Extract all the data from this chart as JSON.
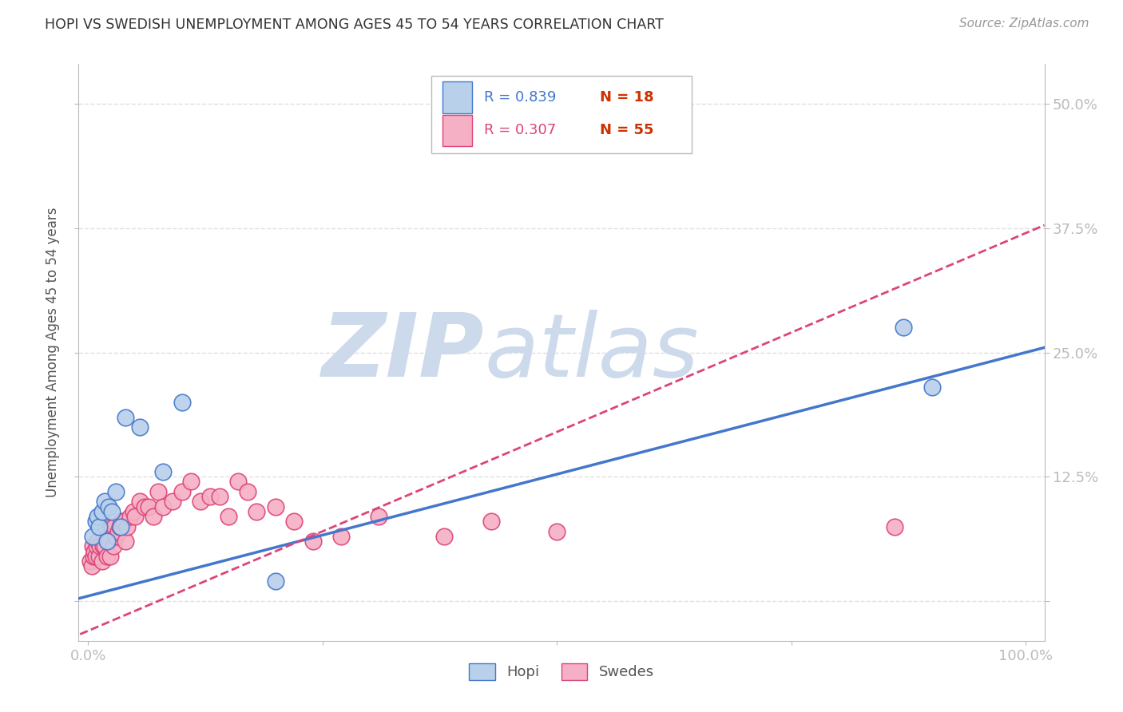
{
  "title": "HOPI VS SWEDISH UNEMPLOYMENT AMONG AGES 45 TO 54 YEARS CORRELATION CHART",
  "source": "Source: ZipAtlas.com",
  "ylabel_label": "Unemployment Among Ages 45 to 54 years",
  "ytick_values": [
    0,
    0.125,
    0.25,
    0.375,
    0.5
  ],
  "xtick_values": [
    0,
    0.25,
    0.5,
    0.75,
    1.0
  ],
  "xtick_labels": [
    "0.0%",
    "",
    "",
    "",
    "100.0%"
  ],
  "xlim": [
    -0.01,
    1.02
  ],
  "ylim": [
    -0.04,
    0.54
  ],
  "hopi_R": 0.839,
  "hopi_N": 18,
  "swedes_R": 0.307,
  "swedes_N": 55,
  "hopi_color": "#b8d0ea",
  "swedes_color": "#f5b0c5",
  "hopi_line_color": "#4477cc",
  "swedes_line_color": "#dd4477",
  "legend_R_color_hopi": "#4477cc",
  "legend_R_color_swedes": "#dd4477",
  "legend_N_color": "#cc3300",
  "watermark_zip": "ZIP",
  "watermark_atlas": "atlas",
  "watermark_color": "#cddaec",
  "background_color": "#ffffff",
  "grid_color": "#e0e0e0",
  "axis_color": "#bbbbbb",
  "tick_label_color": "#5599cc",
  "hopi_line_intercept": 0.005,
  "hopi_line_slope": 0.245,
  "swedes_line_intercept": -0.03,
  "swedes_line_slope": 0.4,
  "hopi_x": [
    0.005,
    0.008,
    0.01,
    0.012,
    0.015,
    0.018,
    0.02,
    0.022,
    0.025,
    0.03,
    0.035,
    0.04,
    0.055,
    0.08,
    0.1,
    0.2,
    0.87,
    0.9
  ],
  "hopi_y": [
    0.065,
    0.08,
    0.085,
    0.075,
    0.09,
    0.1,
    0.06,
    0.095,
    0.09,
    0.11,
    0.075,
    0.185,
    0.175,
    0.13,
    0.2,
    0.02,
    0.275,
    0.215
  ],
  "swedes_x": [
    0.002,
    0.004,
    0.005,
    0.006,
    0.007,
    0.008,
    0.009,
    0.01,
    0.012,
    0.013,
    0.015,
    0.016,
    0.018,
    0.02,
    0.021,
    0.022,
    0.024,
    0.025,
    0.027,
    0.028,
    0.03,
    0.032,
    0.034,
    0.036,
    0.038,
    0.04,
    0.042,
    0.045,
    0.048,
    0.05,
    0.055,
    0.06,
    0.065,
    0.07,
    0.075,
    0.08,
    0.09,
    0.1,
    0.11,
    0.12,
    0.13,
    0.14,
    0.15,
    0.16,
    0.17,
    0.18,
    0.2,
    0.22,
    0.24,
    0.27,
    0.31,
    0.38,
    0.43,
    0.5,
    0.86
  ],
  "swedes_y": [
    0.04,
    0.035,
    0.055,
    0.045,
    0.05,
    0.045,
    0.055,
    0.06,
    0.045,
    0.055,
    0.04,
    0.055,
    0.055,
    0.045,
    0.065,
    0.06,
    0.045,
    0.075,
    0.055,
    0.075,
    0.065,
    0.07,
    0.075,
    0.08,
    0.08,
    0.06,
    0.075,
    0.085,
    0.09,
    0.085,
    0.1,
    0.095,
    0.095,
    0.085,
    0.11,
    0.095,
    0.1,
    0.11,
    0.12,
    0.1,
    0.105,
    0.105,
    0.085,
    0.12,
    0.11,
    0.09,
    0.095,
    0.08,
    0.06,
    0.065,
    0.085,
    0.065,
    0.08,
    0.07,
    0.075
  ]
}
